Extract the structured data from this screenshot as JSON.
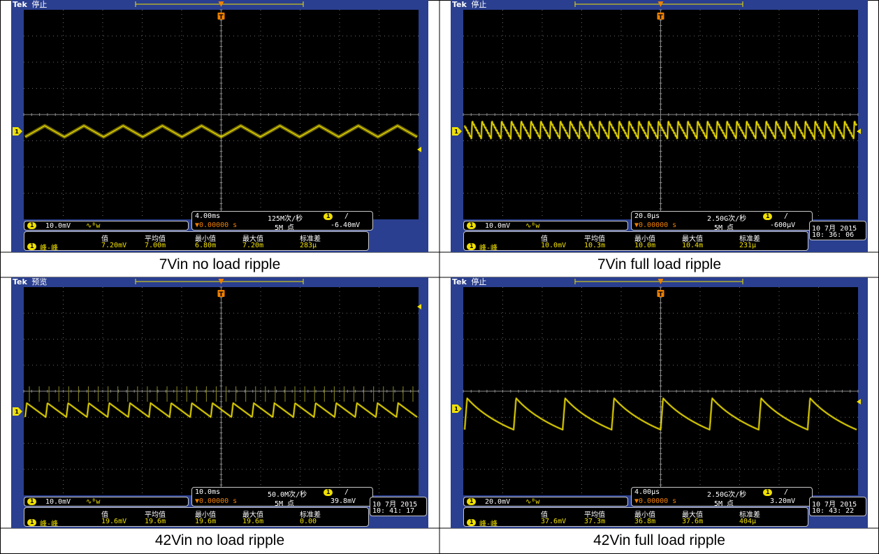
{
  "panels": [
    {
      "caption": "7Vin no load ripple",
      "state": "停止",
      "time_div": "4.00ms",
      "sample_rate": "125M次/秒",
      "points": "5M 点",
      "trigger_pos": "▼0.00000 s",
      "trigger_level": "-6.40mV",
      "volts_div": "10.0mV",
      "date": "",
      "time": "",
      "meas_label": "峰-峰",
      "meas_value": "7.20mV",
      "mean": "7.00m",
      "min": "6.80m",
      "max": "7.20m",
      "stdev": "283µ"
    },
    {
      "caption": "7Vin full load ripple",
      "state": "停止",
      "time_div": "20.0µs",
      "sample_rate": "2.50G次/秒",
      "points": "5M 点",
      "trigger_pos": "▼0.00000 s",
      "trigger_level": "-600µV",
      "volts_div": "10.0mV",
      "date": "10 7月  2015",
      "time": "10: 36: 06",
      "meas_label": "峰-峰",
      "meas_value": "10.0mV",
      "mean": "10.3m",
      "min": "10.0m",
      "max": "10.4m",
      "stdev": "231µ"
    },
    {
      "caption": "42Vin no load ripple",
      "state": "预览",
      "time_div": "10.0ms",
      "sample_rate": "50.0M次/秒",
      "points": "5M 点",
      "trigger_pos": "▼0.00000 s",
      "trigger_level": "39.8mV",
      "volts_div": "10.0mV",
      "date": "10 7月  2015",
      "time": "10: 41: 17",
      "meas_label": "峰-峰",
      "meas_value": "19.6mV",
      "mean": "19.6m",
      "min": "19.6m",
      "max": "19.6m",
      "stdev": "0.00"
    },
    {
      "caption": "42Vin full load ripple",
      "state": "停止",
      "time_div": "4.00µs",
      "sample_rate": "2.50G次/秒",
      "points": "5M 点",
      "trigger_pos": "▼0.00000 s",
      "trigger_level": "3.20mV",
      "volts_div": "20.0mV",
      "date": "10 7月  2015",
      "time": "10: 43: 22",
      "meas_label": "峰-峰",
      "meas_value": "37.6mV",
      "mean": "37.3m",
      "min": "36.8m",
      "max": "37.6m",
      "stdev": "404µ"
    }
  ],
  "labels": {
    "brand": "Tek",
    "col_value": "值",
    "col_mean": "平均值",
    "col_min": "最小值",
    "col_max": "最大值",
    "col_stdev": "标准差",
    "channel": "1",
    "coupling": "∿ᴮw",
    "trigger_icon": "T",
    "slope": "/"
  },
  "colors": {
    "trace": "#f0e000",
    "bezel": "#2a3f8f",
    "screen": "#000000",
    "grid": "#6a6a6a"
  },
  "chart_data": [
    {
      "type": "line",
      "title": "7Vin no load ripple",
      "shape": "triangle",
      "cycles": 10,
      "peak_to_peak_mV": 7.2,
      "volts_per_div_mV": 10,
      "time_per_div": "4.00ms"
    },
    {
      "type": "line",
      "title": "7Vin full load ripple",
      "shape": "sawtooth-with-spikes",
      "cycles": 40,
      "peak_to_peak_mV": 10.0,
      "volts_per_div_mV": 10,
      "time_per_div": "20.0µs"
    },
    {
      "type": "line",
      "title": "42Vin no load ripple",
      "shape": "falling-sawtooth",
      "cycles": 19,
      "peak_to_peak_mV": 19.6,
      "volts_per_div_mV": 10,
      "time_per_div": "10.0ms"
    },
    {
      "type": "line",
      "title": "42Vin full load ripple",
      "shape": "exponential-sawtooth",
      "cycles": 8,
      "peak_to_peak_mV": 37.6,
      "volts_per_div_mV": 20,
      "time_per_div": "4.00µs"
    }
  ]
}
